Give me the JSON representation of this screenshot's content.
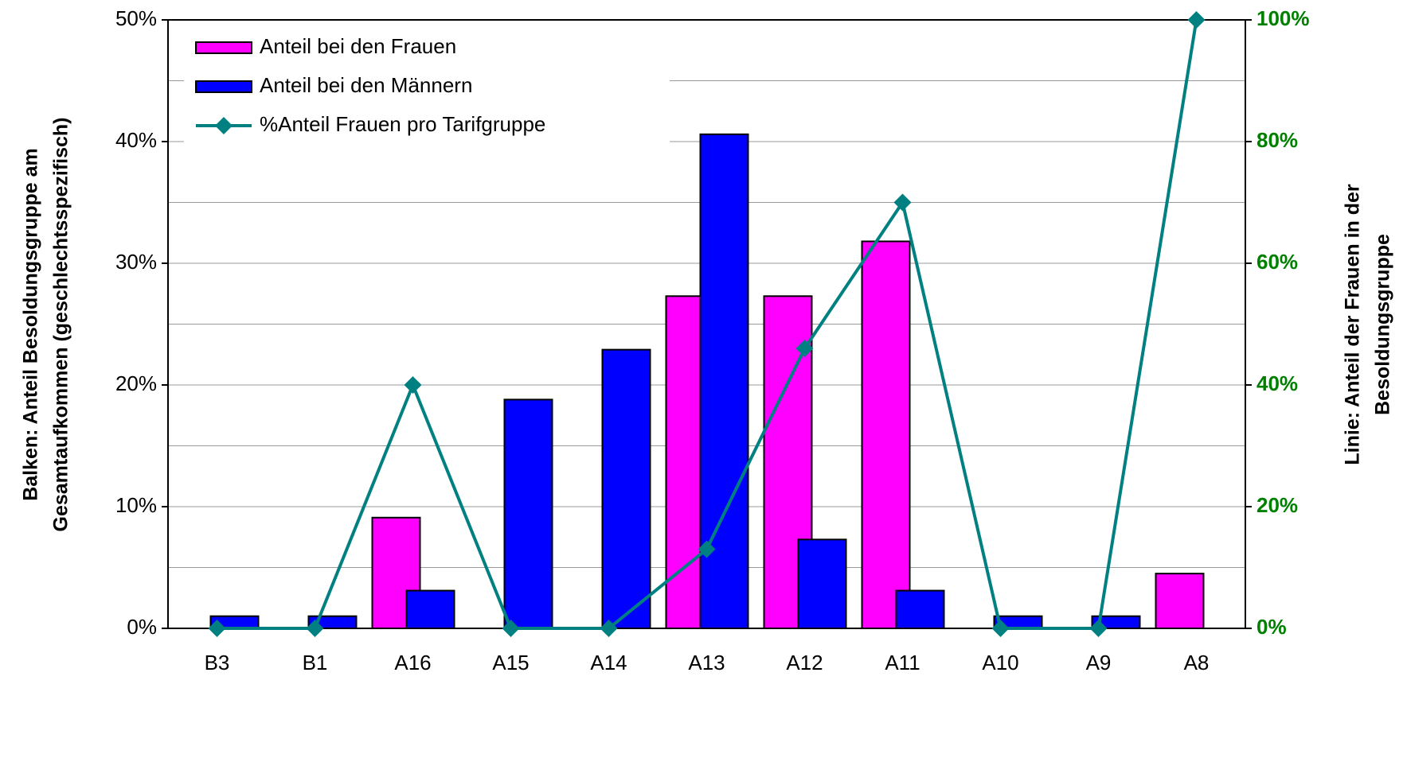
{
  "chart_data": {
    "type": "bar_line",
    "categories": [
      "B3",
      "B1",
      "A16",
      "A15",
      "A14",
      "A13",
      "A12",
      "A11",
      "A10",
      "A9",
      "A8"
    ],
    "series": [
      {
        "name": "Anteil bei den Frauen",
        "color": "#ff00ff",
        "type": "bar",
        "values": [
          0,
          0,
          9.1,
          0,
          0,
          27.3,
          27.3,
          31.8,
          0,
          0,
          4.5
        ]
      },
      {
        "name": "Anteil bei den Männern",
        "color": "#0000ff",
        "type": "bar",
        "values": [
          1.0,
          1.0,
          3.1,
          18.8,
          22.9,
          40.6,
          7.3,
          3.1,
          1.0,
          1.0,
          0
        ]
      },
      {
        "name": "%Anteil Frauen pro Tarifgruppe",
        "color": "#008080",
        "type": "line",
        "axis": "y2",
        "values": [
          0,
          0,
          40,
          0,
          0,
          13,
          46,
          70,
          0,
          0,
          100
        ]
      }
    ],
    "ylabel": [
      "Balken: Anteil Besoldungsgruppe am",
      "Gesamtaufkommen (geschlechtsspezifisch)"
    ],
    "y2label": [
      "Linie: Anteil der Frauen in der",
      "Besoldungsgruppe"
    ],
    "ylim": [
      0,
      50
    ],
    "yticks": [
      {
        "value": 0,
        "label": "0%"
      },
      {
        "value": 10,
        "label": "10%"
      },
      {
        "value": 20,
        "label": "20%"
      },
      {
        "value": 30,
        "label": "30%"
      },
      {
        "value": 40,
        "label": "40%"
      },
      {
        "value": 50,
        "label": "50%"
      }
    ],
    "minor_yticks": [
      5,
      15,
      25,
      35,
      45
    ],
    "y2lim": [
      0,
      100
    ],
    "y2ticks": [
      {
        "value": 0,
        "label": "0%"
      },
      {
        "value": 20,
        "label": "20%"
      },
      {
        "value": 40,
        "label": "40%"
      },
      {
        "value": 60,
        "label": "60%"
      },
      {
        "value": 80,
        "label": "80%"
      },
      {
        "value": 100,
        "label": "100%"
      }
    ],
    "y2_color": "#008000",
    "grid": true,
    "legend": "upper left"
  }
}
